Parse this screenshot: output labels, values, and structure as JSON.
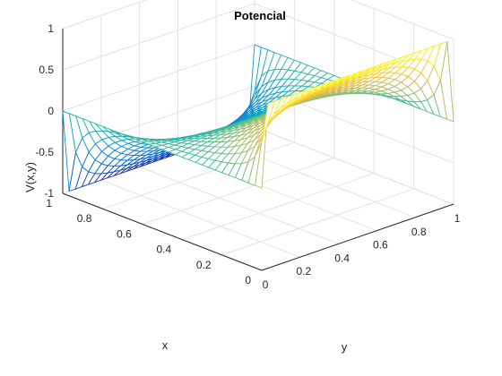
{
  "chart_data": {
    "type": "surface-mesh",
    "title": "Potencial",
    "xlabel": "x",
    "ylabel": "y",
    "zlabel": "V(x,y)",
    "xlim": [
      0,
      1
    ],
    "ylim": [
      0,
      1
    ],
    "zlim": [
      -1,
      1
    ],
    "x_ticks": [
      0,
      0.2,
      0.4,
      0.6,
      0.8,
      1
    ],
    "y_ticks": [
      0,
      0.2,
      0.4,
      0.6,
      0.8,
      1
    ],
    "z_ticks": [
      -1,
      -0.5,
      0,
      0.5,
      1
    ],
    "x_tick_labels": [
      "0",
      "0.2",
      "0.4",
      "0.6",
      "0.8",
      "1"
    ],
    "y_tick_labels": [
      "0",
      "0.2",
      "0.4",
      "0.6",
      "0.8",
      "1"
    ],
    "z_tick_labels": [
      "-1",
      "-0.5",
      "0",
      "0.5",
      "1"
    ],
    "grid": true,
    "colormap": "parula",
    "colormap_stops": [
      "#352a87",
      "#0363e1",
      "#1485d4",
      "#06a7c6",
      "#38b99e",
      "#92bf73",
      "#d9ba56",
      "#fcce2e",
      "#f9fb0e"
    ],
    "mesh_size": [
      31,
      31
    ],
    "boundary_conditions": {
      "V(0,y)": 1,
      "V(1,y)": -1,
      "V(x,0)": 0,
      "V(x,1)": 0
    }
  }
}
